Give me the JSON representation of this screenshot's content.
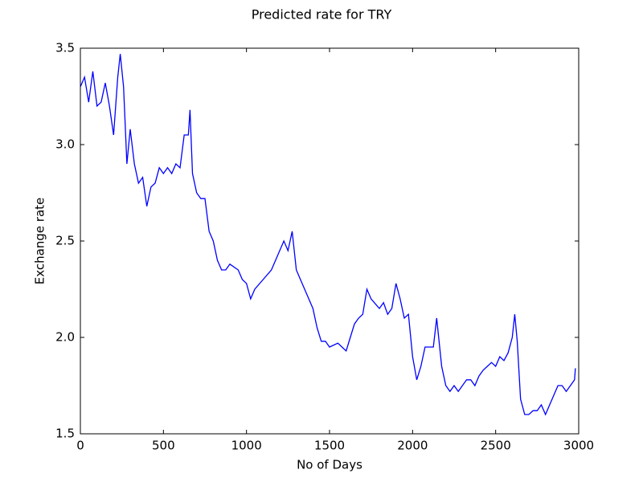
{
  "chart_data": {
    "type": "line",
    "title": "Predicted rate for TRY",
    "x_label": "No of Days",
    "y_label": "Exchange rate",
    "color": "#0000ff",
    "x": [
      0,
      25,
      50,
      75,
      100,
      125,
      150,
      175,
      200,
      225,
      240,
      260,
      280,
      300,
      325,
      350,
      375,
      400,
      425,
      450,
      475,
      500,
      525,
      550,
      575,
      600,
      625,
      650,
      660,
      675,
      700,
      725,
      750,
      775,
      800,
      825,
      850,
      875,
      900,
      950,
      975,
      1000,
      1025,
      1050,
      1100,
      1150,
      1200,
      1225,
      1250,
      1275,
      1300,
      1325,
      1350,
      1375,
      1400,
      1425,
      1450,
      1475,
      1500,
      1550,
      1575,
      1600,
      1625,
      1650,
      1675,
      1700,
      1725,
      1750,
      1800,
      1825,
      1850,
      1875,
      1900,
      1925,
      1950,
      1975,
      2000,
      2025,
      2050,
      2075,
      2100,
      2125,
      2145,
      2175,
      2200,
      2225,
      2250,
      2275,
      2300,
      2325,
      2350,
      2375,
      2400,
      2425,
      2450,
      2475,
      2500,
      2525,
      2550,
      2575,
      2600,
      2615,
      2630,
      2650,
      2675,
      2700,
      2725,
      2750,
      2775,
      2800,
      2825,
      2850,
      2875,
      2900,
      2925,
      2950,
      2975,
      2980
    ],
    "values": [
      3.3,
      3.35,
      3.22,
      3.38,
      3.2,
      3.22,
      3.32,
      3.2,
      3.05,
      3.35,
      3.47,
      3.3,
      2.9,
      3.08,
      2.9,
      2.8,
      2.83,
      2.68,
      2.78,
      2.8,
      2.88,
      2.85,
      2.88,
      2.85,
      2.9,
      2.88,
      3.05,
      3.05,
      3.18,
      2.85,
      2.75,
      2.72,
      2.72,
      2.55,
      2.5,
      2.4,
      2.35,
      2.35,
      2.38,
      2.35,
      2.3,
      2.28,
      2.2,
      2.25,
      2.3,
      2.35,
      2.45,
      2.5,
      2.45,
      2.55,
      2.35,
      2.3,
      2.25,
      2.2,
      2.15,
      2.05,
      1.98,
      1.98,
      1.95,
      1.97,
      1.95,
      1.93,
      2.0,
      2.07,
      2.1,
      2.12,
      2.25,
      2.2,
      2.15,
      2.18,
      2.12,
      2.15,
      2.28,
      2.2,
      2.1,
      2.12,
      1.9,
      1.78,
      1.85,
      1.95,
      1.95,
      1.95,
      2.1,
      1.85,
      1.75,
      1.72,
      1.75,
      1.72,
      1.75,
      1.78,
      1.78,
      1.75,
      1.8,
      1.83,
      1.85,
      1.87,
      1.85,
      1.9,
      1.88,
      1.92,
      2.0,
      2.12,
      1.98,
      1.68,
      1.6,
      1.6,
      1.62,
      1.62,
      1.65,
      1.6,
      1.65,
      1.7,
      1.75,
      1.75,
      1.72,
      1.75,
      1.78,
      1.84
    ],
    "xlim": [
      0,
      3000
    ],
    "ylim": [
      1.5,
      3.5
    ],
    "xticks": [
      0,
      500,
      1000,
      1500,
      2000,
      2500,
      3000
    ],
    "yticks": [
      1.5,
      {
        "value": 2,
        "label": "2.0"
      },
      2.5,
      {
        "value": 3,
        "label": "3.0"
      },
      3.5
    ]
  }
}
